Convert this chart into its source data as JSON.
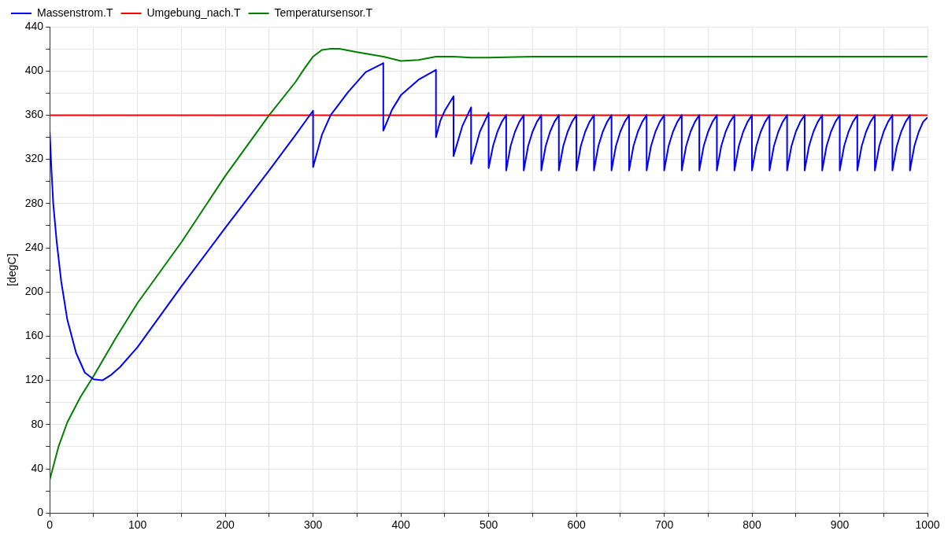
{
  "chart_data": {
    "type": "line",
    "ylabel": "[degC]",
    "legend": "top left",
    "grid": true,
    "marker": "none",
    "line_style": "solid",
    "xlim": [
      0,
      1000
    ],
    "ylim": [
      0,
      440
    ],
    "xticks": [
      0,
      {
        "value": 50,
        "label": null
      },
      100,
      {
        "value": 150,
        "label": null
      },
      200,
      {
        "value": 250,
        "label": null
      },
      300,
      {
        "value": 350,
        "label": null
      },
      400,
      {
        "value": 450,
        "label": null
      },
      500,
      {
        "value": 550,
        "label": null
      },
      600,
      {
        "value": 650,
        "label": null
      },
      700,
      {
        "value": 750,
        "label": null
      },
      800,
      {
        "value": 850,
        "label": null
      },
      900,
      {
        "value": 950,
        "label": null
      },
      1000
    ],
    "yticks": [
      0,
      {
        "value": 20,
        "label": null
      },
      40,
      {
        "value": 60,
        "label": null
      },
      80,
      {
        "value": 100,
        "label": null
      },
      120,
      {
        "value": 140,
        "label": null
      },
      160,
      {
        "value": 180,
        "label": null
      },
      200,
      {
        "value": 220,
        "label": null
      },
      240,
      {
        "value": 260,
        "label": null
      },
      280,
      {
        "value": 300,
        "label": null
      },
      320,
      {
        "value": 340,
        "label": null
      },
      360,
      {
        "value": 380,
        "label": null
      },
      400,
      {
        "value": 420,
        "label": null
      },
      440
    ],
    "series": [
      {
        "name": "Massenstrom.T",
        "color": "#0000ff",
        "x": [
          0,
          2,
          4,
          8,
          13,
          20,
          30,
          40,
          50,
          60,
          70,
          80,
          100,
          150,
          200,
          250,
          280,
          300,
          300,
          310,
          320,
          340,
          360,
          380,
          380,
          390,
          400,
          420,
          440,
          440,
          445,
          450,
          460,
          460,
          470,
          480,
          480,
          490,
          500,
          500,
          505,
          510,
          515,
          520,
          520,
          525,
          530,
          535,
          540,
          540,
          545,
          550,
          555,
          560,
          560,
          565,
          570,
          575,
          580,
          580,
          585,
          590,
          595,
          600,
          600,
          605,
          610,
          615,
          620,
          620,
          625,
          630,
          635,
          640,
          640,
          645,
          650,
          655,
          660,
          660,
          665,
          670,
          675,
          680,
          680,
          685,
          690,
          695,
          700,
          700,
          705,
          710,
          715,
          720,
          720,
          725,
          730,
          735,
          740,
          740,
          745,
          750,
          755,
          760,
          760,
          765,
          770,
          775,
          780,
          780,
          785,
          790,
          795,
          800,
          800,
          805,
          810,
          815,
          820,
          820,
          825,
          830,
          835,
          840,
          840,
          845,
          850,
          855,
          860,
          860,
          865,
          870,
          875,
          880,
          880,
          885,
          890,
          895,
          900,
          900,
          905,
          910,
          915,
          920,
          920,
          925,
          930,
          935,
          940,
          940,
          945,
          950,
          955,
          960,
          960,
          965,
          970,
          975,
          980,
          980,
          985,
          990,
          995,
          1000
        ],
        "values": [
          345,
          310,
          280,
          245,
          210,
          175,
          145,
          127,
          121,
          120,
          125,
          132,
          150,
          205,
          258,
          310,
          342,
          364,
          313,
          342,
          360,
          381,
          399,
          407,
          346,
          365,
          378,
          392,
          401,
          340,
          355,
          364,
          377,
          323,
          350,
          367,
          316,
          345,
          362,
          312,
          332,
          345,
          354,
          360,
          310,
          332,
          345,
          354,
          360,
          310,
          332,
          345,
          354,
          360,
          310,
          332,
          345,
          354,
          360,
          310,
          332,
          345,
          354,
          360,
          310,
          332,
          345,
          354,
          360,
          310,
          332,
          345,
          354,
          360,
          310,
          332,
          345,
          354,
          360,
          310,
          332,
          345,
          354,
          360,
          310,
          332,
          345,
          354,
          360,
          310,
          332,
          345,
          354,
          360,
          310,
          332,
          345,
          354,
          360,
          310,
          332,
          345,
          354,
          360,
          310,
          332,
          345,
          354,
          360,
          310,
          332,
          345,
          354,
          360,
          310,
          332,
          345,
          354,
          360,
          310,
          332,
          345,
          354,
          360,
          310,
          332,
          345,
          354,
          360,
          310,
          332,
          345,
          354,
          360,
          310,
          332,
          345,
          354,
          360,
          310,
          332,
          345,
          354,
          360,
          310,
          332,
          345,
          354,
          360,
          310,
          332,
          345,
          354,
          360,
          310,
          332,
          345,
          354,
          360,
          310,
          332,
          345,
          354,
          358
        ]
      },
      {
        "name": "Umgebung_nach.T",
        "color": "#ff0000",
        "x": [
          0,
          1000
        ],
        "values": [
          360,
          360
        ]
      },
      {
        "name": "Temperatursensor.T",
        "color": "#008000",
        "x": [
          0,
          10,
          20,
          35,
          50,
          75,
          100,
          150,
          200,
          250,
          280,
          290,
          300,
          310,
          320,
          330,
          350,
          380,
          400,
          420,
          440,
          460,
          480,
          500,
          550,
          600,
          700,
          800,
          900,
          1000
        ],
        "values": [
          30,
          60,
          82,
          105,
          124,
          158,
          190,
          245,
          305,
          360,
          390,
          402,
          413,
          419,
          420,
          420,
          417,
          413,
          409,
          410,
          413,
          413,
          412,
          412,
          413,
          413,
          413,
          413,
          413,
          413
        ]
      }
    ]
  }
}
